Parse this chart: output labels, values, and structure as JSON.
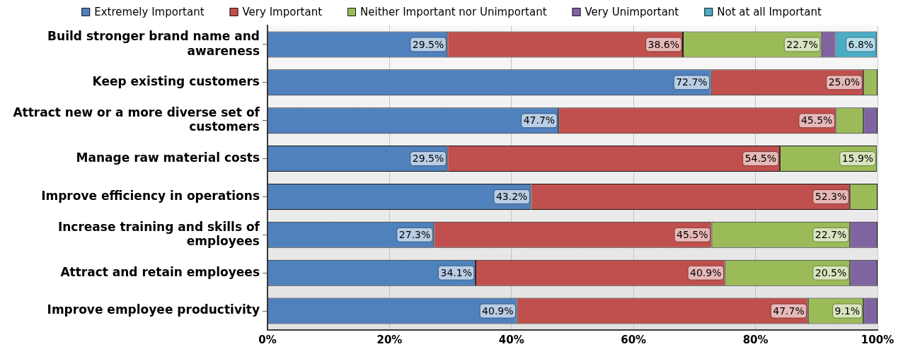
{
  "chart_data": {
    "type": "bar",
    "orientation": "horizontal",
    "stacked": true,
    "categories": [
      "Build stronger brand name and awareness",
      "Keep existing customers",
      "Attract new or a more diverse set of customers",
      "Manage raw material costs",
      "Improve efficiency in operations",
      "Increase training and skills of employees",
      "Attract and retain employees",
      "Improve employee productivity"
    ],
    "series": [
      {
        "name": "Extremely Important",
        "color": "#4f81bd",
        "values": [
          29.5,
          72.7,
          47.7,
          29.5,
          43.2,
          27.3,
          34.1,
          40.9
        ],
        "value_labels": [
          "29.5%",
          "72.7%",
          "47.7%",
          "29.5%",
          "43.2%",
          "27.3%",
          "34.1%",
          "40.9%"
        ]
      },
      {
        "name": "Very Important",
        "color": "#c0504d",
        "values": [
          38.6,
          25.0,
          45.5,
          54.5,
          52.3,
          45.5,
          40.9,
          47.7
        ],
        "value_labels": [
          "38.6%",
          "25.0%",
          "45.5%",
          "54.5%",
          "52.3%",
          "45.5%",
          "40.9%",
          "47.7%"
        ]
      },
      {
        "name": "Neither Important nor Unimportant",
        "color": "#9bbb59",
        "values": [
          22.7,
          2.3,
          4.5,
          15.9,
          4.5,
          22.7,
          20.5,
          9.1
        ],
        "value_labels": [
          "22.7%",
          null,
          null,
          "15.9%",
          null,
          "22.7%",
          "20.5%",
          "9.1%"
        ]
      },
      {
        "name": "Very Unimportant",
        "color": "#8064a2",
        "values": [
          2.3,
          null,
          2.3,
          null,
          null,
          4.5,
          4.5,
          2.3
        ]
      },
      {
        "name": "Not at all Important",
        "color": "#4bacc6",
        "values": [
          6.8,
          null,
          null,
          null,
          null,
          null,
          null,
          null
        ],
        "value_labels": [
          "6.8%",
          null,
          null,
          null,
          null,
          null,
          null,
          null
        ]
      }
    ],
    "xlim": [
      0,
      100
    ],
    "xticks": [
      {
        "value": 0,
        "label": "0%"
      },
      {
        "value": 20,
        "label": "20%"
      },
      {
        "value": 40,
        "label": "40%"
      },
      {
        "value": 60,
        "label": "60%"
      },
      {
        "value": 80,
        "label": "80%"
      },
      {
        "value": 100,
        "label": "100%"
      }
    ],
    "grid": "x",
    "legend": "top"
  }
}
